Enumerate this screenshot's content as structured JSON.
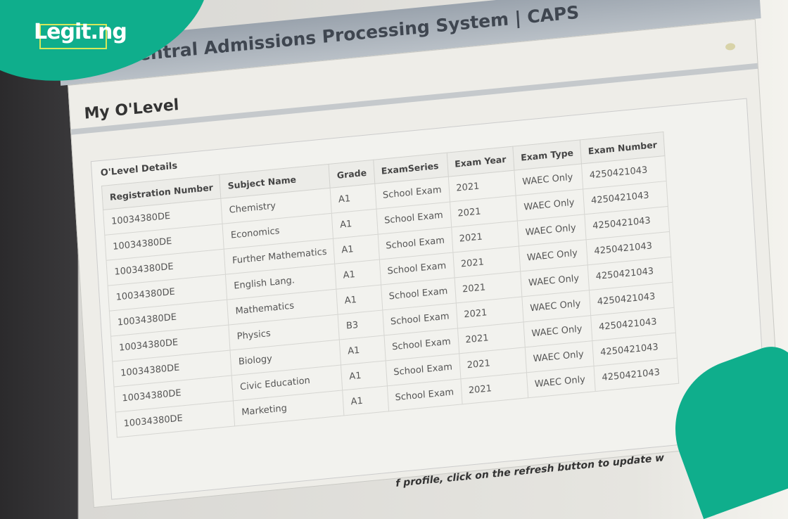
{
  "app": {
    "title": "Central Admissions Processing System | CAPS"
  },
  "page": {
    "title": "My O'Level"
  },
  "section": {
    "title": "O'Level Details"
  },
  "table": {
    "headers": [
      "Registration Number",
      "Subject Name",
      "Grade",
      "ExamSeries",
      "Exam Year",
      "Exam Type",
      "Exam Number"
    ],
    "rows": [
      [
        "10034380DE",
        "Chemistry",
        "A1",
        "School Exam",
        "2021",
        "WAEC Only",
        "4250421043"
      ],
      [
        "10034380DE",
        "Economics",
        "A1",
        "School Exam",
        "2021",
        "WAEC Only",
        "4250421043"
      ],
      [
        "10034380DE",
        "Further Mathematics",
        "A1",
        "School Exam",
        "2021",
        "WAEC Only",
        "4250421043"
      ],
      [
        "10034380DE",
        "English Lang.",
        "A1",
        "School Exam",
        "2021",
        "WAEC Only",
        "4250421043"
      ],
      [
        "10034380DE",
        "Mathematics",
        "A1",
        "School Exam",
        "2021",
        "WAEC Only",
        "4250421043"
      ],
      [
        "10034380DE",
        "Physics",
        "B3",
        "School Exam",
        "2021",
        "WAEC Only",
        "4250421043"
      ],
      [
        "10034380DE",
        "Biology",
        "A1",
        "School Exam",
        "2021",
        "WAEC Only",
        "4250421043"
      ],
      [
        "10034380DE",
        "Civic Education",
        "A1",
        "School Exam",
        "2021",
        "WAEC Only",
        "4250421043"
      ],
      [
        "10034380DE",
        "Marketing",
        "A1",
        "School Exam",
        "2021",
        "WAEC Only",
        "4250421043"
      ]
    ]
  },
  "footnote": "f profile, click on the refresh button to update w",
  "watermark": {
    "text": "Legit.ng",
    "color": "#0fae8c"
  }
}
